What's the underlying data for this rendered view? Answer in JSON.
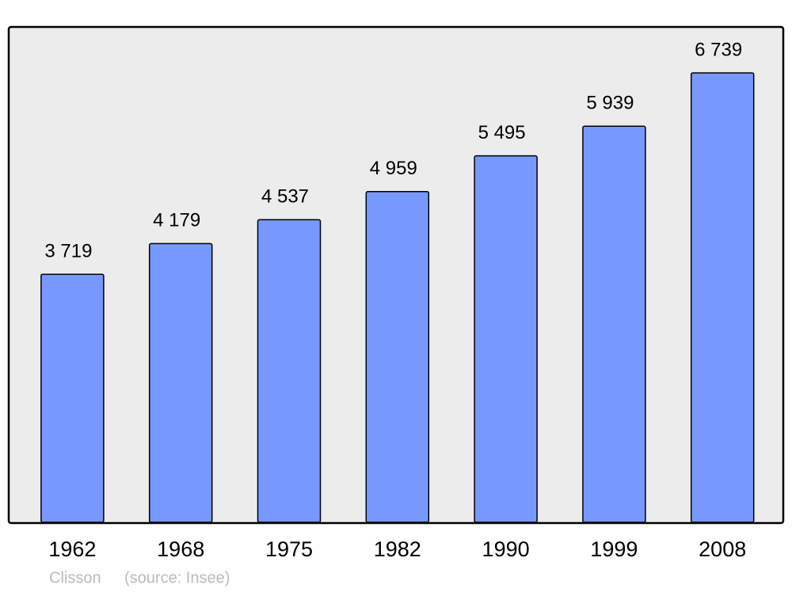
{
  "chart_data": {
    "type": "bar",
    "categories": [
      "1962",
      "1968",
      "1975",
      "1982",
      "1990",
      "1999",
      "2008"
    ],
    "values": [
      3719,
      4179,
      4537,
      4959,
      5495,
      5939,
      6739
    ],
    "value_labels": [
      "3 719",
      "4 179",
      "4 537",
      "4 959",
      "5 495",
      "5 939",
      "6 739"
    ],
    "color": "#7799ff",
    "place": "Clisson",
    "source": "(source: Insee)"
  }
}
